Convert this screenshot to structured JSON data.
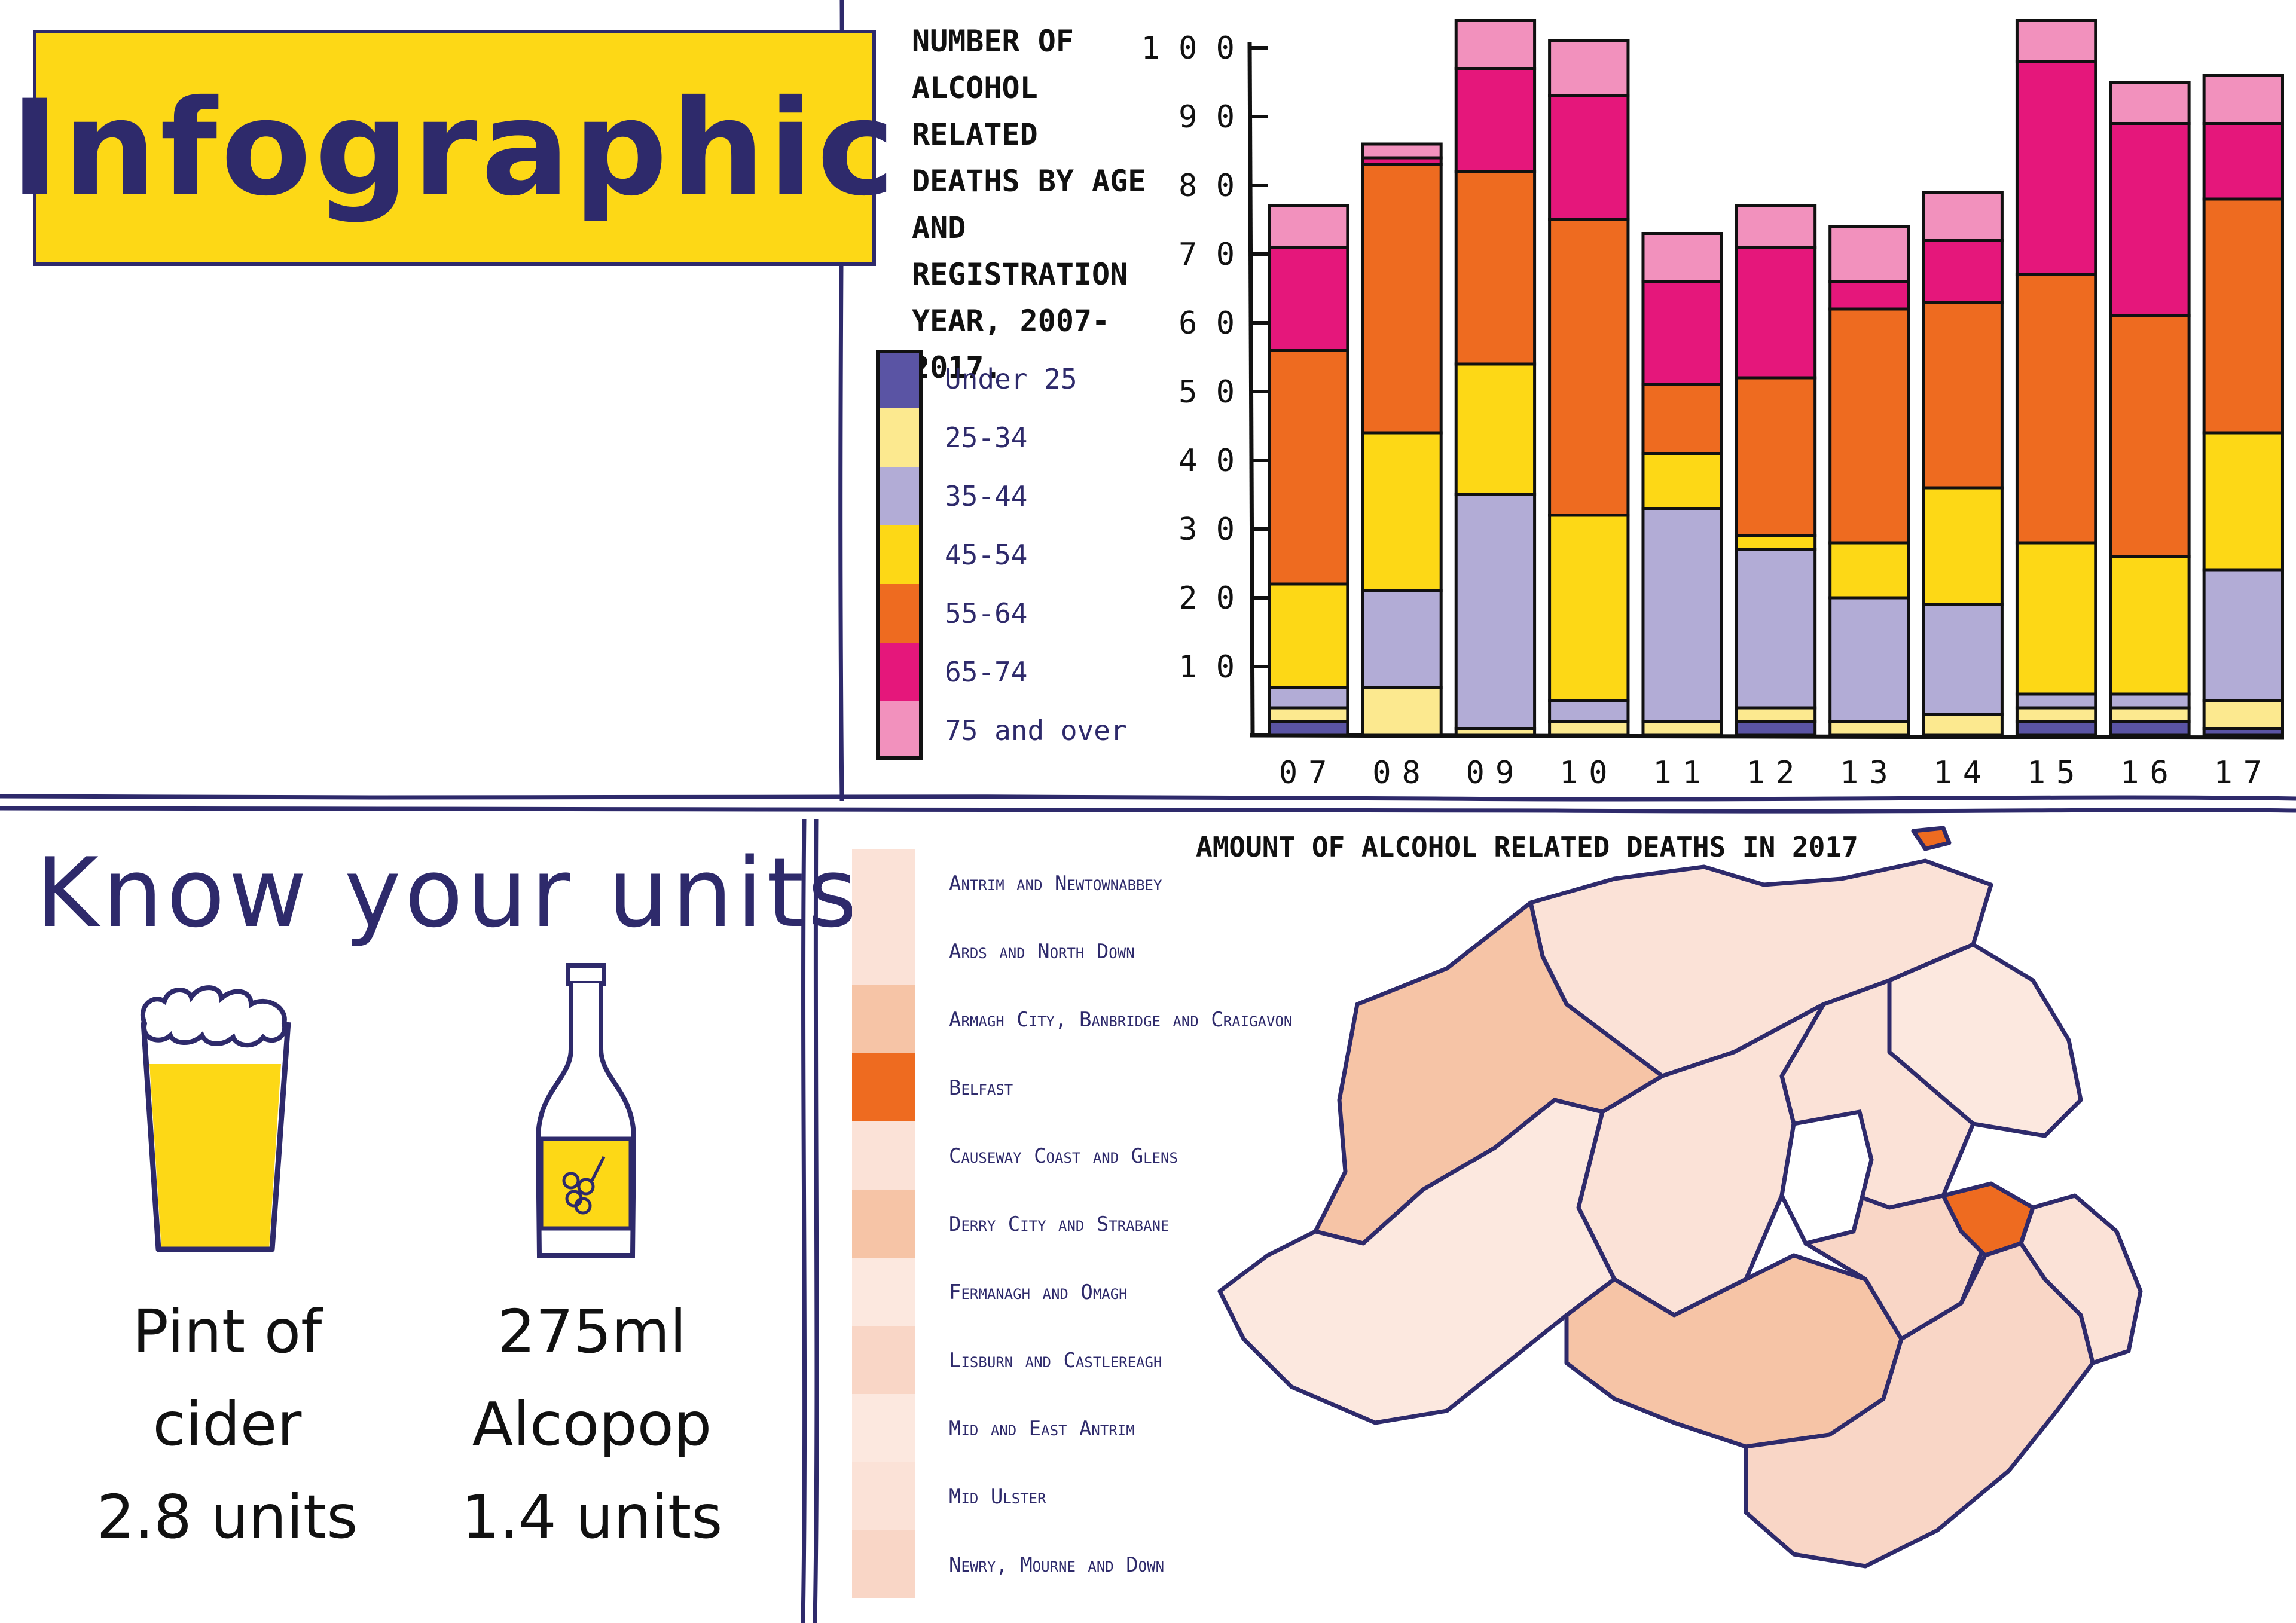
{
  "page": {
    "title": "Infographic"
  },
  "chart_data": {
    "type": "bar",
    "stacked": true,
    "title": "Number of alcohol related deaths by age and registration year, 2007-2017.",
    "categories": [
      "07",
      "08",
      "09",
      "10",
      "11",
      "12",
      "13",
      "14",
      "15",
      "16",
      "17"
    ],
    "y_ticks": [
      "1 0",
      "2 0",
      "3 0",
      "4 0",
      "5 0",
      "6 0",
      "7 0",
      "8 0",
      "9 0",
      "1 0 0"
    ],
    "ylim": [
      0,
      100
    ],
    "legend_position": "left",
    "series": [
      {
        "name": "Under 25",
        "color": "#5a54a4",
        "values": [
          2,
          0,
          0,
          0,
          0,
          2,
          0,
          0,
          2,
          2,
          1
        ]
      },
      {
        "name": "25-34",
        "color": "#fce98f",
        "values": [
          2,
          7,
          1,
          2,
          2,
          2,
          2,
          3,
          2,
          2,
          4
        ]
      },
      {
        "name": "35-44",
        "color": "#b2acd6",
        "values": [
          3,
          14,
          34,
          3,
          31,
          23,
          18,
          16,
          2,
          2,
          19
        ]
      },
      {
        "name": "45-54",
        "color": "#fdd816",
        "values": [
          15,
          23,
          19,
          27,
          8,
          2,
          8,
          17,
          22,
          20,
          20
        ]
      },
      {
        "name": "55-64",
        "color": "#ee6b20",
        "values": [
          34,
          39,
          28,
          43,
          10,
          23,
          34,
          27,
          39,
          35,
          34
        ]
      },
      {
        "name": "65-74",
        "color": "#e5177b",
        "values": [
          15,
          1,
          15,
          18,
          15,
          19,
          4,
          9,
          31,
          28,
          11
        ]
      },
      {
        "name": "75 and over",
        "color": "#f291bd",
        "values": [
          6,
          2,
          7,
          8,
          7,
          6,
          8,
          7,
          6,
          6,
          7
        ]
      }
    ]
  },
  "units": {
    "title": "Know your units",
    "items": [
      {
        "line1": "Pint of",
        "line2": "cider",
        "line3": "2.8 units"
      },
      {
        "line1": "275ml",
        "line2": "Alcopop",
        "line3": "1.4 units"
      }
    ]
  },
  "map": {
    "title": "Amount of alcohol related deaths in 2017",
    "districts": [
      {
        "name": "Antrim and Newtownabbey",
        "color": "#fbe2d7"
      },
      {
        "name": "Ards and North Down",
        "color": "#fbe2d7"
      },
      {
        "name": "Armagh City, Banbridge and Craigavon",
        "color": "#f6c4a6"
      },
      {
        "name": "Belfast",
        "color": "#ee6b20"
      },
      {
        "name": "Causeway Coast and Glens",
        "color": "#fbe2d7"
      },
      {
        "name": "Derry City and Strabane",
        "color": "#f6c4a6"
      },
      {
        "name": "Fermanagh and Omagh",
        "color": "#fce8df"
      },
      {
        "name": "Lisburn and Castlereagh",
        "color": "#f9d6c6"
      },
      {
        "name": "Mid and East Antrim",
        "color": "#fce8df"
      },
      {
        "name": "Mid Ulster",
        "color": "#fbe2d7"
      },
      {
        "name": "Newry, Mourne and Down",
        "color": "#f9d6c6"
      }
    ]
  }
}
